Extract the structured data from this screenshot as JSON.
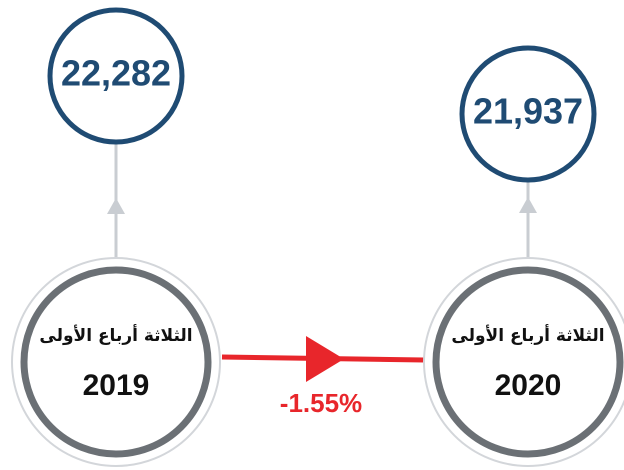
{
  "nodes": [
    {
      "label": "الثلاثة أرباع الأولى",
      "year": "2019",
      "value": "22,282"
    },
    {
      "label": "الثلاثة أرباع الأولى",
      "year": "2020",
      "value": "21,937"
    }
  ],
  "change": "-1.55%"
}
